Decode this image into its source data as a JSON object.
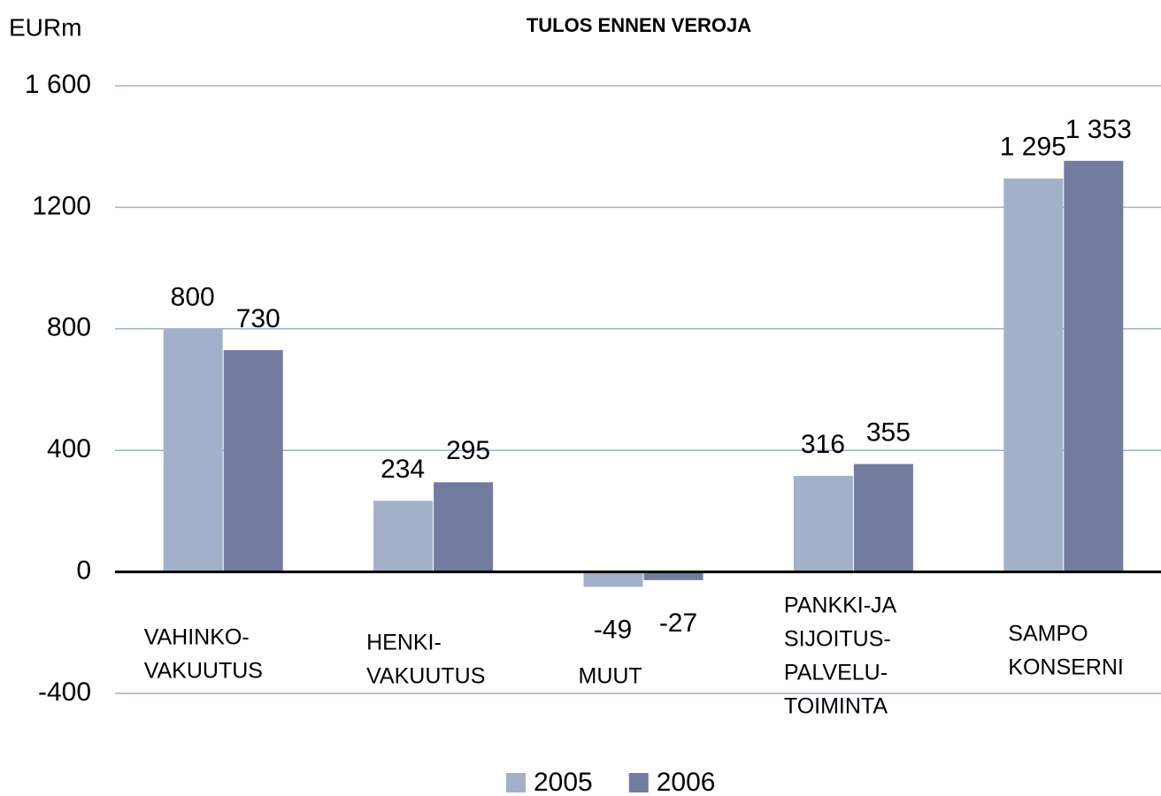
{
  "chart_data": {
    "type": "bar",
    "title": "TULOS ENNEN VEROJA",
    "y_label": "EURm",
    "categories": [
      [
        "VAHINKO-",
        "VAKUUTUS"
      ],
      [
        "HENKI-",
        "VAKUUTUS"
      ],
      [
        "MUUT"
      ],
      [
        "PANKKI-JA",
        "SIJOITUS-",
        "PALVELU-",
        "TOIMINTA"
      ],
      [
        "SAMPO",
        "KONSERNI"
      ]
    ],
    "series": [
      {
        "name": "2005",
        "color": "#a3b0c9",
        "values": [
          800,
          234,
          -49,
          316,
          1295
        ],
        "value_labels": [
          "800",
          "234",
          "-49",
          "316",
          "1 295"
        ]
      },
      {
        "name": "2006",
        "color": "#737b9f",
        "values": [
          730,
          295,
          -27,
          355,
          1353
        ],
        "value_labels": [
          "730",
          "295",
          "-27",
          "355",
          "1 353"
        ]
      }
    ],
    "ylim": [
      -400,
      1600
    ],
    "yticks": [
      -400,
      0,
      400,
      800,
      1200,
      {
        "value": 1600,
        "label": "1 600"
      }
    ],
    "grid": true,
    "legend": "bottom"
  }
}
